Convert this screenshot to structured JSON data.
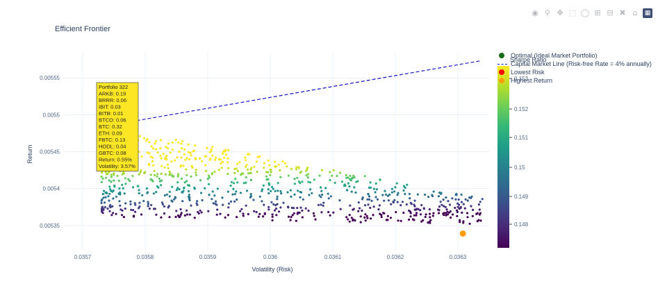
{
  "toolbar": {
    "icons": [
      "camera-icon",
      "zoom-icon",
      "pan-icon",
      "box-select-icon",
      "lasso-icon",
      "zoom-in-icon",
      "zoom-out-icon",
      "autoscale-icon",
      "reset-icon",
      "plotly-logo-icon"
    ]
  },
  "legend": {
    "items": [
      {
        "label": "Optimal (Ideal Market Portfolio)",
        "color": "#1a6b1a",
        "kind": "marker"
      },
      {
        "label": "Capital Market Line (Risk-free Rate = 4% annually)",
        "color": "#1616c8",
        "kind": "line"
      },
      {
        "label": "Lowest Risk",
        "color": "#ff0000",
        "kind": "marker"
      },
      {
        "label": "Highest Return",
        "color": "#ff9f0a",
        "kind": "marker"
      }
    ]
  },
  "colorbar": {
    "title": "Sharpe Ratio",
    "tick_labels": [
      "0.153",
      "0.152",
      "0.151",
      "0.15",
      "0.149",
      "0.148"
    ],
    "colors": [
      "#fde725",
      "#b5de2b",
      "#6ece58",
      "#35b779",
      "#1f9e89",
      "#26828e",
      "#31688e",
      "#3e4989",
      "#482878",
      "#440154"
    ]
  },
  "tooltip": {
    "lines": [
      "Portfolio 322",
      "ARKB: 0.19",
      "BRRR: 0.06",
      "IBIT: 0.03",
      "BITB: 0.01",
      "BTCO: 0.06",
      "BTC: 0.32",
      "ETH: 0.09",
      "FBTC: 0.13",
      "HODL: 0.04",
      "GBTC: 0.08",
      "Return: 0.55%",
      "Volatility: 3.57%"
    ]
  },
  "chart_data": {
    "type": "scatter",
    "title": "Efficient Frontier",
    "xlabel": "Volatility (Risk)",
    "ylabel": "Return",
    "xlim": [
      0.03567,
      0.03635
    ],
    "ylim": [
      0.005315,
      0.005585
    ],
    "x_ticks": [
      0.0357,
      0.0358,
      0.0359,
      0.036,
      0.0361,
      0.0362,
      0.0363
    ],
    "x_tick_labels": [
      "0.0357",
      "0.0358",
      "0.0359",
      "0.036",
      "0.0361",
      "0.0362",
      "0.0363"
    ],
    "y_ticks": [
      0.00535,
      0.0054,
      0.00545,
      0.0055,
      0.00555
    ],
    "y_tick_labels": [
      "0.00535",
      "0.0054",
      "0.00545",
      "0.0055",
      "0.00555"
    ],
    "grid": true,
    "legend_position": "top-right",
    "cloud": {
      "count": 900,
      "x_range": [
        0.03573,
        0.03634
      ],
      "y_range": [
        0.00534,
        0.00548
      ],
      "sharpe_range": [
        0.1472,
        0.1534
      ]
    },
    "optimal": {
      "x": 0.035745,
      "y": 0.005487
    },
    "lowest_risk": {
      "x": 0.035732,
      "y": 0.005433
    },
    "highest_return": {
      "x": 0.036308,
      "y": 0.005339
    },
    "cml": [
      {
        "x": 0.035725,
        "y": 0.005483
      },
      {
        "x": 0.036335,
        "y": 0.005573
      }
    ]
  }
}
